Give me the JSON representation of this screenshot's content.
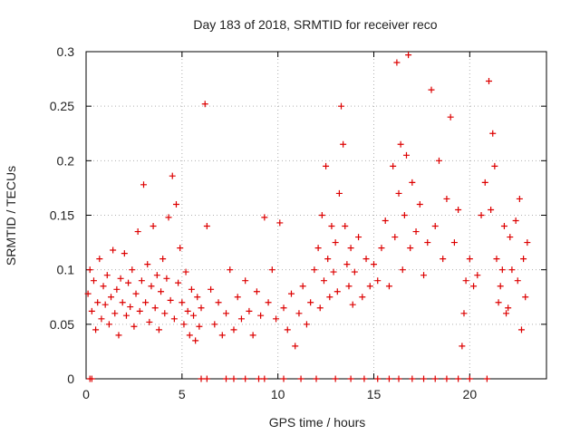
{
  "chart_data": {
    "type": "scatter",
    "title": "Day 183 of 2018, SRMTID for receiver reco",
    "xlabel": "GPS time / hours",
    "ylabel": "SRMTID / TECUs",
    "xlim": [
      0,
      24
    ],
    "ylim": [
      0,
      0.3
    ],
    "x_ticks": [
      0,
      5,
      10,
      15,
      20
    ],
    "y_ticks": [
      0,
      0.05,
      0.1,
      0.15,
      0.2,
      0.25,
      0.3
    ],
    "x_tick_labels": [
      "0",
      "5",
      "10",
      "15",
      "20"
    ],
    "y_tick_labels": [
      "0",
      "0.05",
      "0.1",
      "0.15",
      "0.2",
      "0.25",
      "0.3"
    ],
    "grid": true,
    "marker": "plus",
    "color": "#dd0000",
    "series": [
      {
        "name": "SRMTID",
        "points": [
          [
            0.1,
            0.078
          ],
          [
            0.2,
            0.1
          ],
          [
            0.3,
            0.062
          ],
          [
            0.4,
            0.09
          ],
          [
            0.5,
            0.045
          ],
          [
            0.6,
            0.07
          ],
          [
            0.7,
            0.11
          ],
          [
            0.8,
            0.055
          ],
          [
            0.9,
            0.085
          ],
          [
            1.0,
            0.068
          ],
          [
            1.1,
            0.095
          ],
          [
            1.2,
            0.05
          ],
          [
            1.3,
            0.075
          ],
          [
            1.4,
            0.118
          ],
          [
            1.5,
            0.06
          ],
          [
            1.6,
            0.082
          ],
          [
            1.7,
            0.04
          ],
          [
            1.8,
            0.092
          ],
          [
            1.9,
            0.07
          ],
          [
            2.0,
            0.115
          ],
          [
            2.1,
            0.058
          ],
          [
            2.2,
            0.088
          ],
          [
            2.3,
            0.066
          ],
          [
            2.4,
            0.1
          ],
          [
            2.5,
            0.048
          ],
          [
            2.6,
            0.078
          ],
          [
            2.7,
            0.135
          ],
          [
            2.8,
            0.062
          ],
          [
            2.9,
            0.09
          ],
          [
            3.0,
            0.178
          ],
          [
            3.1,
            0.07
          ],
          [
            3.2,
            0.105
          ],
          [
            3.3,
            0.052
          ],
          [
            3.4,
            0.085
          ],
          [
            3.5,
            0.14
          ],
          [
            3.6,
            0.065
          ],
          [
            3.7,
            0.095
          ],
          [
            3.8,
            0.045
          ],
          [
            3.9,
            0.08
          ],
          [
            4.0,
            0.11
          ],
          [
            4.1,
            0.06
          ],
          [
            4.2,
            0.092
          ],
          [
            4.3,
            0.148
          ],
          [
            4.4,
            0.072
          ],
          [
            4.5,
            0.186
          ],
          [
            4.6,
            0.055
          ],
          [
            4.7,
            0.16
          ],
          [
            4.8,
            0.088
          ],
          [
            4.9,
            0.12
          ],
          [
            5.0,
            0.07
          ],
          [
            5.1,
            0.05
          ],
          [
            5.2,
            0.098
          ],
          [
            5.3,
            0.062
          ],
          [
            5.4,
            0.04
          ],
          [
            5.5,
            0.082
          ],
          [
            5.6,
            0.058
          ],
          [
            5.7,
            0.035
          ],
          [
            5.8,
            0.075
          ],
          [
            5.9,
            0.048
          ],
          [
            6.0,
            0.065
          ],
          [
            6.2,
            0.252
          ],
          [
            6.3,
            0.14
          ],
          [
            6.5,
            0.082
          ],
          [
            6.7,
            0.05
          ],
          [
            6.9,
            0.07
          ],
          [
            7.1,
            0.04
          ],
          [
            7.3,
            0.06
          ],
          [
            7.5,
            0.1
          ],
          [
            7.7,
            0.045
          ],
          [
            7.9,
            0.075
          ],
          [
            8.1,
            0.055
          ],
          [
            8.3,
            0.09
          ],
          [
            8.5,
            0.062
          ],
          [
            8.7,
            0.04
          ],
          [
            8.9,
            0.08
          ],
          [
            9.1,
            0.058
          ],
          [
            9.3,
            0.148
          ],
          [
            9.5,
            0.07
          ],
          [
            9.7,
            0.1
          ],
          [
            9.9,
            0.055
          ],
          [
            10.1,
            0.143
          ],
          [
            10.3,
            0.065
          ],
          [
            10.5,
            0.045
          ],
          [
            10.7,
            0.078
          ],
          [
            10.9,
            0.03
          ],
          [
            11.1,
            0.06
          ],
          [
            11.3,
            0.085
          ],
          [
            11.5,
            0.05
          ],
          [
            11.7,
            0.07
          ],
          [
            11.9,
            0.1
          ],
          [
            12.1,
            0.12
          ],
          [
            12.2,
            0.065
          ],
          [
            12.3,
            0.15
          ],
          [
            12.4,
            0.09
          ],
          [
            12.5,
            0.195
          ],
          [
            12.6,
            0.11
          ],
          [
            12.7,
            0.075
          ],
          [
            12.8,
            0.14
          ],
          [
            12.9,
            0.098
          ],
          [
            13.0,
            0.125
          ],
          [
            13.1,
            0.08
          ],
          [
            13.2,
            0.17
          ],
          [
            13.3,
            0.25
          ],
          [
            13.4,
            0.215
          ],
          [
            13.5,
            0.14
          ],
          [
            13.6,
            0.105
          ],
          [
            13.7,
            0.085
          ],
          [
            13.8,
            0.12
          ],
          [
            13.9,
            0.068
          ],
          [
            14.0,
            0.098
          ],
          [
            14.2,
            0.13
          ],
          [
            14.4,
            0.075
          ],
          [
            14.6,
            0.11
          ],
          [
            14.8,
            0.085
          ],
          [
            15.0,
            0.105
          ],
          [
            15.2,
            0.09
          ],
          [
            15.4,
            0.12
          ],
          [
            15.6,
            0.145
          ],
          [
            15.8,
            0.085
          ],
          [
            16.0,
            0.195
          ],
          [
            16.1,
            0.13
          ],
          [
            16.2,
            0.29
          ],
          [
            16.3,
            0.17
          ],
          [
            16.4,
            0.215
          ],
          [
            16.5,
            0.1
          ],
          [
            16.6,
            0.15
          ],
          [
            16.7,
            0.205
          ],
          [
            16.8,
            0.297
          ],
          [
            16.9,
            0.12
          ],
          [
            17.0,
            0.18
          ],
          [
            17.2,
            0.135
          ],
          [
            17.4,
            0.16
          ],
          [
            17.6,
            0.095
          ],
          [
            17.8,
            0.125
          ],
          [
            18.0,
            0.265
          ],
          [
            18.2,
            0.14
          ],
          [
            18.4,
            0.2
          ],
          [
            18.6,
            0.11
          ],
          [
            18.8,
            0.165
          ],
          [
            19.0,
            0.24
          ],
          [
            19.2,
            0.125
          ],
          [
            19.4,
            0.155
          ],
          [
            19.6,
            0.03
          ],
          [
            19.7,
            0.06
          ],
          [
            19.8,
            0.09
          ],
          [
            20.0,
            0.11
          ],
          [
            20.2,
            0.085
          ],
          [
            20.4,
            0.095
          ],
          [
            20.6,
            0.15
          ],
          [
            20.8,
            0.18
          ],
          [
            21.0,
            0.273
          ],
          [
            21.2,
            0.225
          ],
          [
            21.4,
            0.11
          ],
          [
            21.6,
            0.085
          ],
          [
            21.8,
            0.14
          ],
          [
            22.0,
            0.065
          ],
          [
            22.2,
            0.1
          ],
          [
            22.4,
            0.145
          ],
          [
            22.6,
            0.165
          ],
          [
            22.8,
            0.11
          ],
          [
            22.9,
            0.075
          ],
          [
            23.0,
            0.125
          ],
          [
            22.7,
            0.045
          ],
          [
            22.5,
            0.09
          ],
          [
            22.1,
            0.13
          ],
          [
            21.9,
            0.06
          ],
          [
            21.7,
            0.1
          ],
          [
            21.5,
            0.07
          ],
          [
            21.3,
            0.195
          ],
          [
            21.1,
            0.155
          ],
          [
            0.2,
            0.0
          ],
          [
            0.3,
            0.0
          ],
          [
            6.0,
            0.0
          ],
          [
            6.3,
            0.0
          ],
          [
            7.3,
            0.0
          ],
          [
            7.7,
            0.0
          ],
          [
            8.3,
            0.0
          ],
          [
            9.0,
            0.0
          ],
          [
            9.3,
            0.0
          ],
          [
            10.3,
            0.0
          ],
          [
            11.2,
            0.0
          ],
          [
            12.0,
            0.0
          ],
          [
            13.0,
            0.0
          ],
          [
            13.8,
            0.0
          ],
          [
            14.5,
            0.0
          ],
          [
            15.2,
            0.0
          ],
          [
            15.8,
            0.0
          ],
          [
            16.3,
            0.0
          ],
          [
            17.0,
            0.0
          ],
          [
            17.6,
            0.0
          ],
          [
            18.2,
            0.0
          ],
          [
            18.8,
            0.0
          ],
          [
            19.4,
            0.0
          ],
          [
            20.0,
            0.0
          ],
          [
            20.9,
            0.0
          ]
        ]
      }
    ]
  }
}
